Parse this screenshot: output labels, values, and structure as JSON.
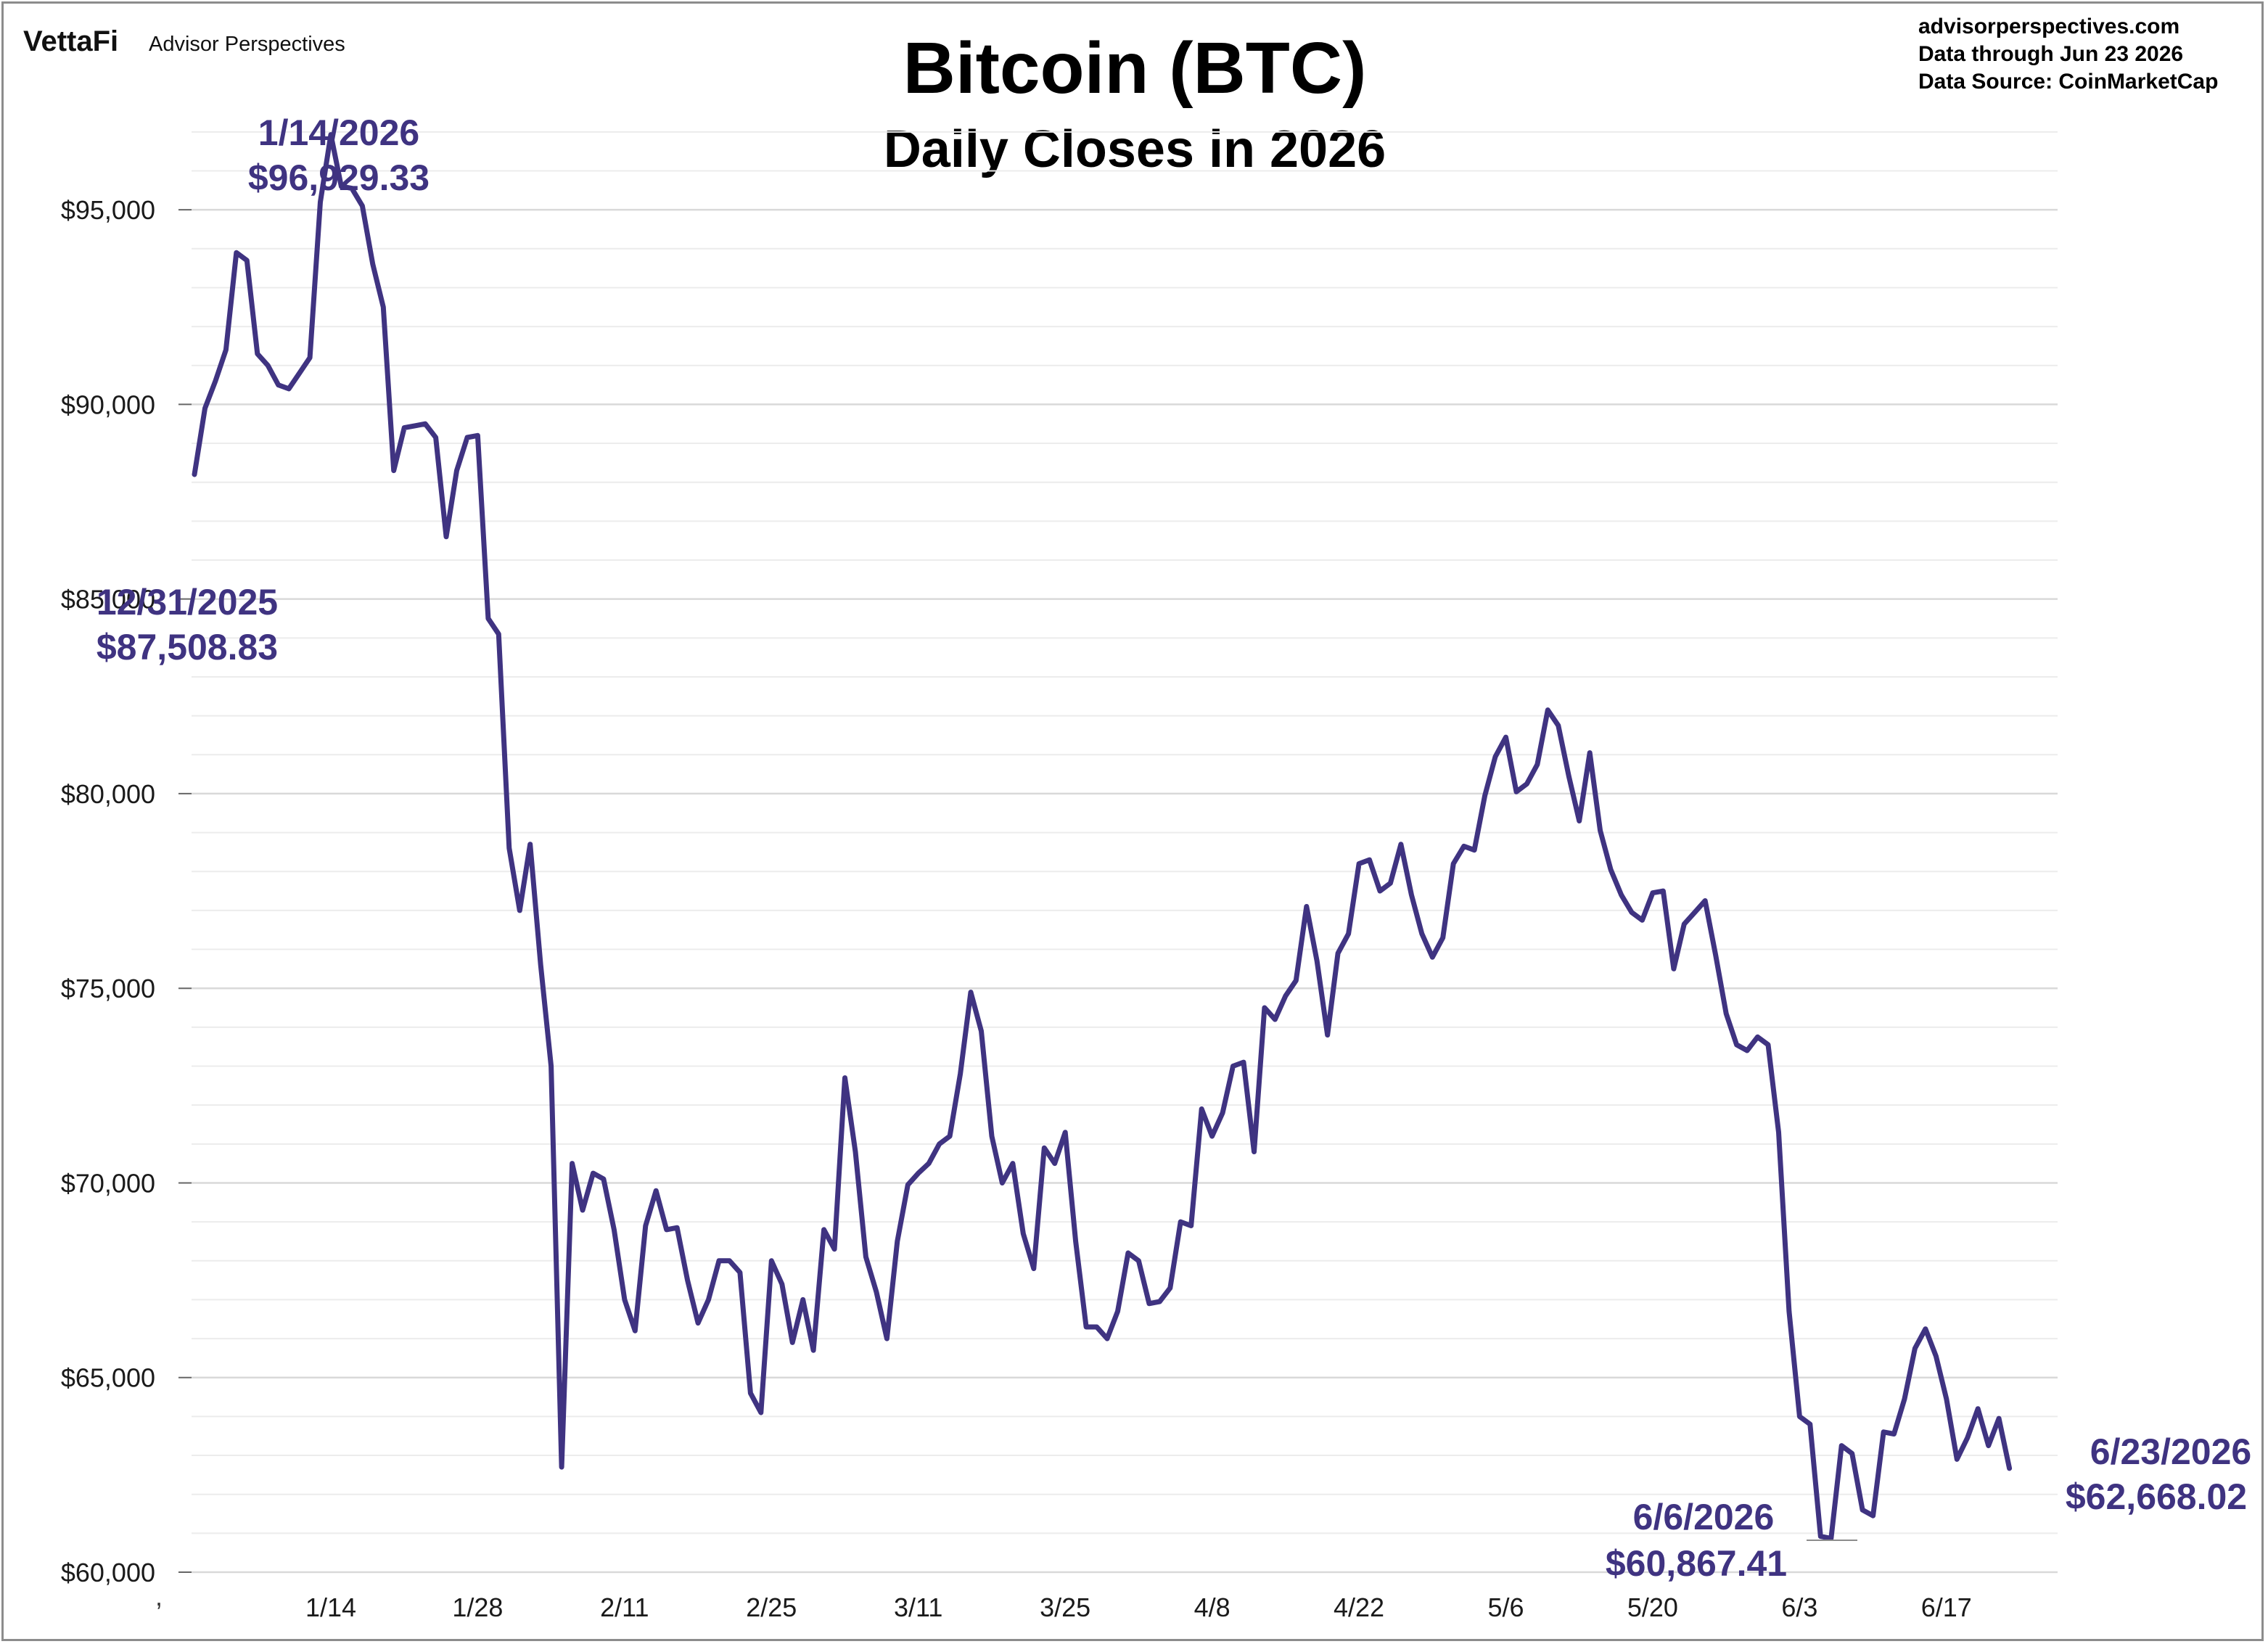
{
  "branding": {
    "logo_text": "VettaFi",
    "logo_sub": "Advisor Perspectives"
  },
  "source_note": {
    "line1": "advisorperspectives.com",
    "line2": "Data through  Jun 23 2026",
    "line3": "Data Source:  CoinMarketCap"
  },
  "colors": {
    "line": "#3f3381",
    "grid": "#d9d9d9",
    "annotation": "#3f3381"
  },
  "chart_data": {
    "type": "line",
    "title": "Bitcoin (BTC)",
    "subtitle": "Daily Closes in 2026",
    "xlabel": "",
    "ylabel": "",
    "ylim": [
      60000,
      97500
    ],
    "grid": true,
    "y_ticks": [
      60000,
      65000,
      70000,
      75000,
      80000,
      85000,
      90000,
      95000
    ],
    "y_tick_labels": [
      "$60,000",
      "$65,000",
      "$70,000",
      "$75,000",
      "$80,000",
      "$85,000",
      "$90,000",
      "$95,000"
    ],
    "x_ticks": [
      13,
      27,
      41,
      55,
      69,
      83,
      97,
      111,
      125,
      139,
      153,
      167
    ],
    "x_tick_labels": [
      "1/14",
      "1/28",
      "2/11",
      "2/25",
      "3/11",
      "3/25",
      "4/8",
      "4/22",
      "5/6",
      "5/20",
      "6/3",
      "6/17"
    ],
    "xlim": [
      0,
      174
    ],
    "series": [
      {
        "values": [
          88200,
          89900,
          90600,
          91400,
          93900,
          93700,
          91300,
          91000,
          90500,
          90400,
          90800,
          91200,
          95200,
          96929.33,
          95600,
          95550,
          95100,
          93600,
          92500,
          88300,
          89400,
          89450,
          89500,
          89150,
          86600,
          88300,
          89150,
          89200,
          84500,
          84100,
          78600,
          77000,
          78700,
          75600,
          73000,
          62700,
          70500,
          69300,
          70250,
          70100,
          68800,
          67000,
          66200,
          68900,
          69800,
          68800,
          68850,
          67500,
          66400,
          67000,
          68000,
          68000,
          67700,
          64600,
          64100,
          68000,
          67400,
          65900,
          67000,
          65700,
          68800,
          68300,
          72700,
          70800,
          68100,
          67200,
          66000,
          68500,
          69950,
          70250,
          70500,
          71000,
          71200,
          72800,
          74900,
          73900,
          71200,
          70000,
          70500,
          68700,
          67800,
          70900,
          70500,
          71300,
          68500,
          66300,
          66300,
          66000,
          66700,
          68200,
          68000,
          66900,
          66950,
          67300,
          69000,
          68900,
          71900,
          71200,
          71800,
          73000,
          73100,
          70800,
          74500,
          74200,
          74800,
          75200,
          77100,
          75700,
          73800,
          75900,
          76400,
          78200,
          78300,
          77500,
          77700,
          78700,
          77400,
          76400,
          75800,
          76300,
          78200,
          78650,
          78550,
          79950,
          80950,
          81450,
          80050,
          80250,
          80750,
          82150,
          81750,
          80450,
          79300,
          81050,
          79050,
          78050,
          77400,
          76950,
          76750,
          77450,
          77500,
          75500,
          76650,
          76950,
          77250,
          75850,
          74350,
          73550,
          73400,
          73750,
          73550,
          71300,
          66700,
          64000,
          63800,
          60920,
          60867.41,
          63250,
          63050,
          61600,
          61450,
          63600,
          63550,
          64450,
          65750,
          66250,
          65550,
          64450,
          62900,
          63450,
          64200,
          63250,
          63950,
          62668.02
        ]
      }
    ],
    "annotations": [
      {
        "date": "1/14/2026",
        "value": "$96,929.33"
      },
      {
        "date": "12/31/2025",
        "value": "$87,508.83"
      },
      {
        "date": "6/6/2026",
        "value": "$60,867.41"
      },
      {
        "date": "6/23/2026",
        "value": "$62,668.02"
      }
    ]
  }
}
